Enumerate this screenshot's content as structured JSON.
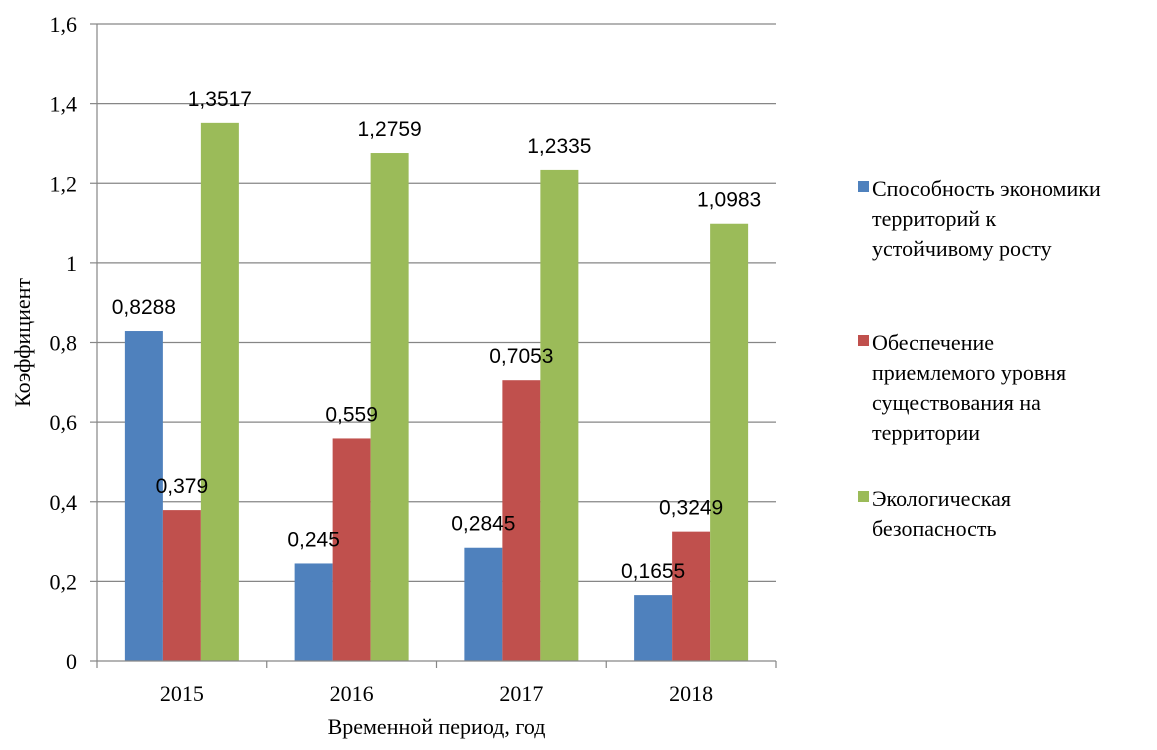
{
  "chart_data": {
    "type": "bar",
    "categories": [
      "2015",
      "2016",
      "2017",
      "2018"
    ],
    "series": [
      {
        "name": "Способность экономики территорий к устойчивому росту",
        "legend_lines": [
          "Способность экономики",
          "территорий к",
          "устойчивому росту"
        ],
        "color": "#4F81BD",
        "values": [
          0.8288,
          0.245,
          0.2845,
          0.1655
        ],
        "labels": [
          "0,8288",
          "0,245",
          "0,2845",
          "0,1655"
        ]
      },
      {
        "name": "Обеспечение приемлемого уровня существования на территории",
        "legend_lines": [
          "Обеспечение",
          "приемлемого уровня",
          "существования на",
          "территории"
        ],
        "color": "#C0504D",
        "values": [
          0.379,
          0.559,
          0.7053,
          0.3249
        ],
        "labels": [
          "0,379",
          "0,559",
          "0,7053",
          "0,3249"
        ]
      },
      {
        "name": "Экологическая безопасность",
        "legend_lines": [
          "Экологическая",
          "безопасность"
        ],
        "color": "#9BBB59",
        "values": [
          1.3517,
          1.2759,
          1.2335,
          1.0983
        ],
        "labels": [
          "1,3517",
          "1,2759",
          "1,2335",
          "1,0983"
        ]
      }
    ],
    "xlabel": "Временной период, год",
    "ylabel": "Коэффициент",
    "ylim": [
      0,
      1.6
    ],
    "yticks": [
      0,
      0.2,
      0.4,
      0.6,
      0.8,
      1,
      1.2,
      1.4,
      1.6
    ],
    "ytick_labels": [
      "0",
      "0,2",
      "0,4",
      "0,6",
      "0,8",
      "1",
      "1,2",
      "1,4",
      "1,6"
    ],
    "grid": true,
    "legend_position": "right",
    "gridline_color": "#868686"
  }
}
